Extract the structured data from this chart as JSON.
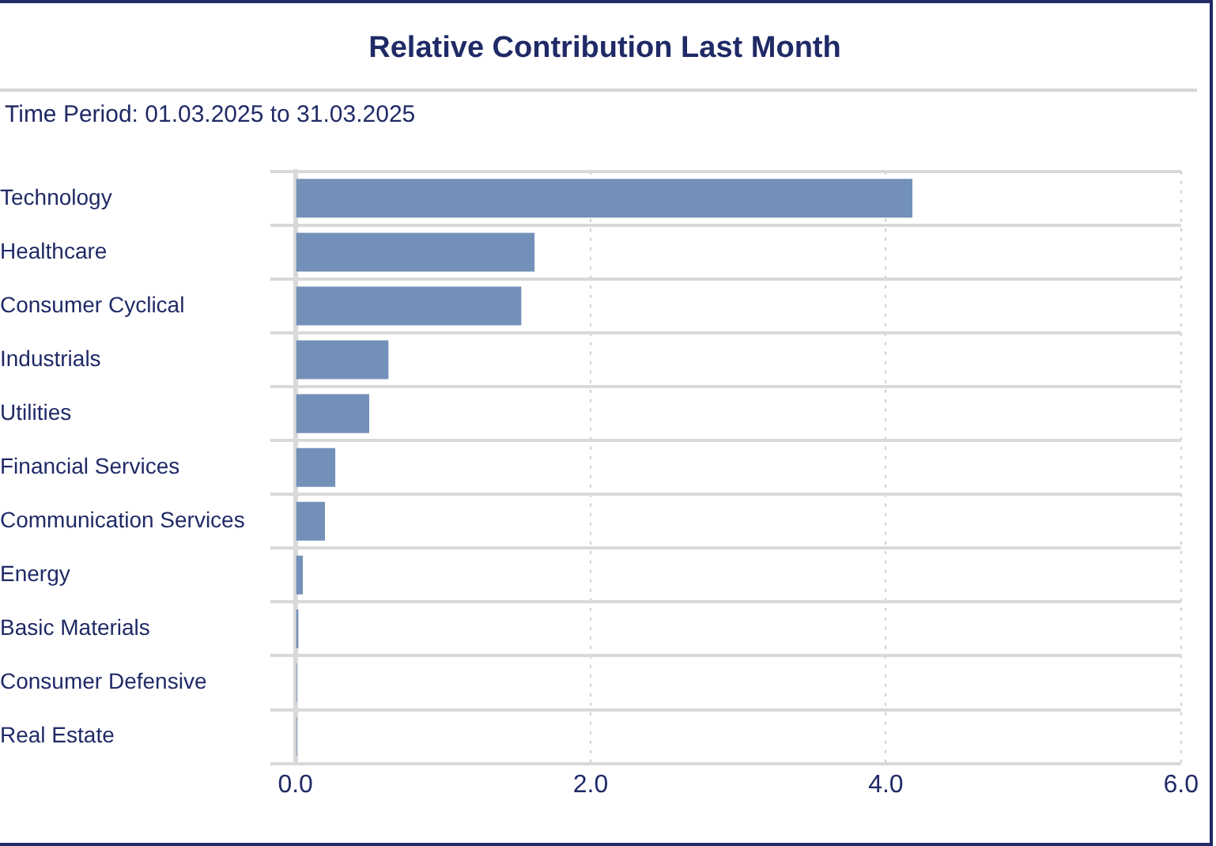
{
  "chart_data": {
    "type": "bar",
    "orientation": "horizontal",
    "title": "Relative Contribution Last Month",
    "subtitle": "Time Period: 01.03.2025 to 31.03.2025",
    "categories": [
      "Technology",
      "Healthcare",
      "Consumer Cyclical",
      "Industrials",
      "Utilities",
      "Financial Services",
      "Communication Services",
      "Energy",
      "Basic Materials",
      "Consumer Defensive",
      "Real Estate"
    ],
    "values": [
      4.18,
      1.62,
      1.53,
      0.63,
      0.5,
      0.27,
      0.2,
      0.05,
      0.02,
      0.01,
      0.01
    ],
    "color": "#7390b8",
    "xlim": [
      0,
      6
    ],
    "xticks": [
      {
        "value": 0,
        "label": "0.0"
      },
      {
        "value": 2,
        "label": "2.0"
      },
      {
        "value": 4,
        "label": "4.0"
      },
      {
        "value": 6,
        "label": "6.0"
      }
    ],
    "grid": true,
    "legend": false
  }
}
